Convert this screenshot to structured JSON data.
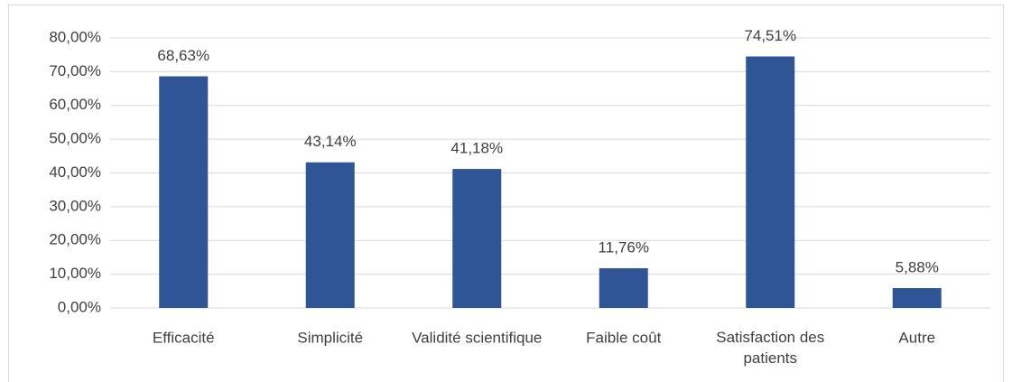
{
  "chart_data": {
    "type": "bar",
    "categories": [
      "Efficacité",
      "Simplicité",
      "Validité scientifique",
      "Faible coût",
      "Satisfaction des patients",
      "Autre"
    ],
    "values": [
      68.63,
      43.14,
      41.18,
      11.76,
      74.51,
      5.88
    ],
    "value_labels": [
      "68,63%",
      "43,14%",
      "41,18%",
      "11,76%",
      "74,51%",
      "5,88%"
    ],
    "color": "#2f5597",
    "ylim": [
      0,
      80
    ],
    "yticks": [
      {
        "value": 0,
        "label": "0,00%"
      },
      {
        "value": 10,
        "label": "10,00%"
      },
      {
        "value": 20,
        "label": "20,00%"
      },
      {
        "value": 30,
        "label": "30,00%"
      },
      {
        "value": 40,
        "label": "40,00%"
      },
      {
        "value": 50,
        "label": "50,00%"
      },
      {
        "value": 60,
        "label": "60,00%"
      },
      {
        "value": 70,
        "label": "70,00%"
      },
      {
        "value": 80,
        "label": "80,00%"
      }
    ],
    "grid": true
  }
}
